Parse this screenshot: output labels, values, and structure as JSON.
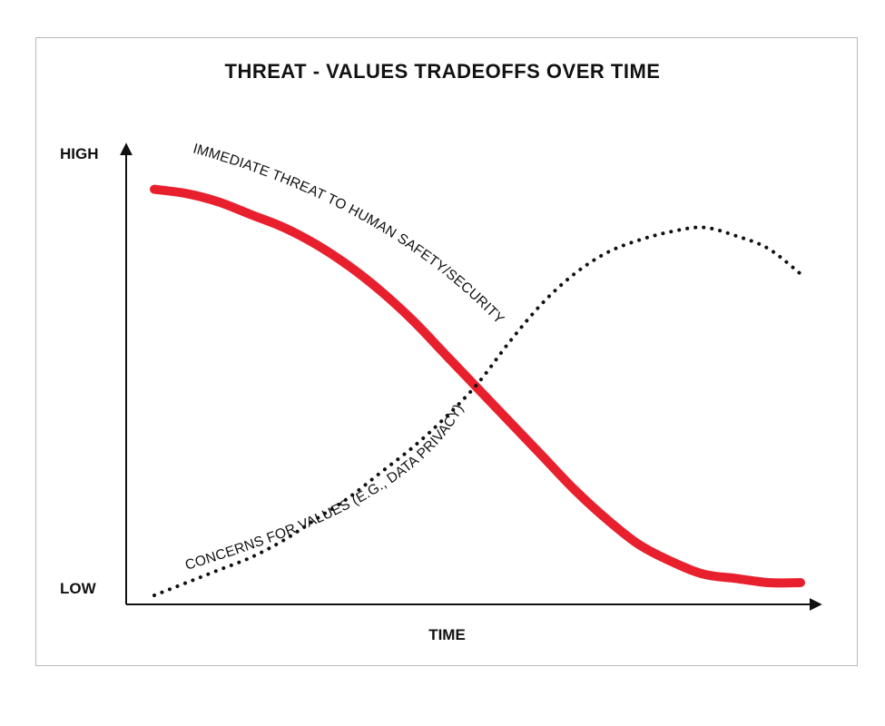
{
  "chart_data": {
    "type": "line",
    "title": "THREAT - VALUES TRADEOFFS OVER TIME",
    "xlabel": "TIME",
    "ylabel": "",
    "y_tick_labels": [
      "LOW",
      "HIGH"
    ],
    "x": [
      0,
      0.05,
      0.1,
      0.15,
      0.2,
      0.25,
      0.3,
      0.35,
      0.4,
      0.45,
      0.5,
      0.55,
      0.6,
      0.65,
      0.7,
      0.75,
      0.8,
      0.85,
      0.9,
      0.95,
      1
    ],
    "series": [
      {
        "name": "IMMEDIATE THREAT TO HUMAN SAFETY/SECURITY",
        "style": "solid",
        "color": "#e8202e",
        "values": [
          0.96,
          0.95,
          0.93,
          0.9,
          0.87,
          0.83,
          0.78,
          0.72,
          0.65,
          0.57,
          0.49,
          0.41,
          0.33,
          0.25,
          0.18,
          0.12,
          0.08,
          0.05,
          0.04,
          0.03,
          0.03
        ]
      },
      {
        "name": "CONCERNS FOR VALUES (E.G., DATA PRIVACY)",
        "style": "dotted",
        "color": "#111111",
        "values": [
          0,
          0.03,
          0.06,
          0.09,
          0.13,
          0.18,
          0.23,
          0.29,
          0.35,
          0.42,
          0.5,
          0.6,
          0.69,
          0.76,
          0.81,
          0.84,
          0.86,
          0.87,
          0.85,
          0.82,
          0.76
        ]
      }
    ],
    "ylim": [
      0,
      1
    ],
    "xlim": [
      0,
      1
    ],
    "grid": false,
    "legend": "inline labels along curves"
  }
}
